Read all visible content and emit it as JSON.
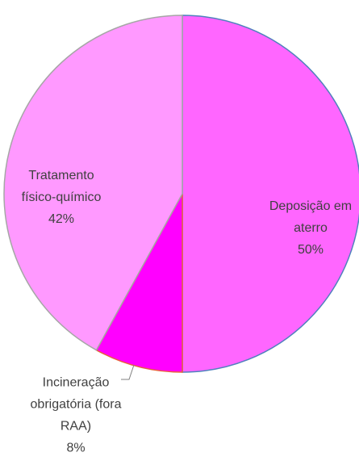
{
  "chart_data": {
    "type": "pie",
    "categories": [
      "Deposição em aterro",
      "Incineração obrigatória (fora RAA)",
      "Tratamento físico-químico"
    ],
    "values": [
      50,
      8,
      42
    ],
    "value_labels": [
      "50%",
      "8%",
      "42%"
    ],
    "colors": [
      "#ff66ff",
      "#ff00ff",
      "#ff99ff"
    ],
    "edge_colors": [
      "#4f81bd",
      "#e8603c",
      "#a6a6a6"
    ]
  }
}
